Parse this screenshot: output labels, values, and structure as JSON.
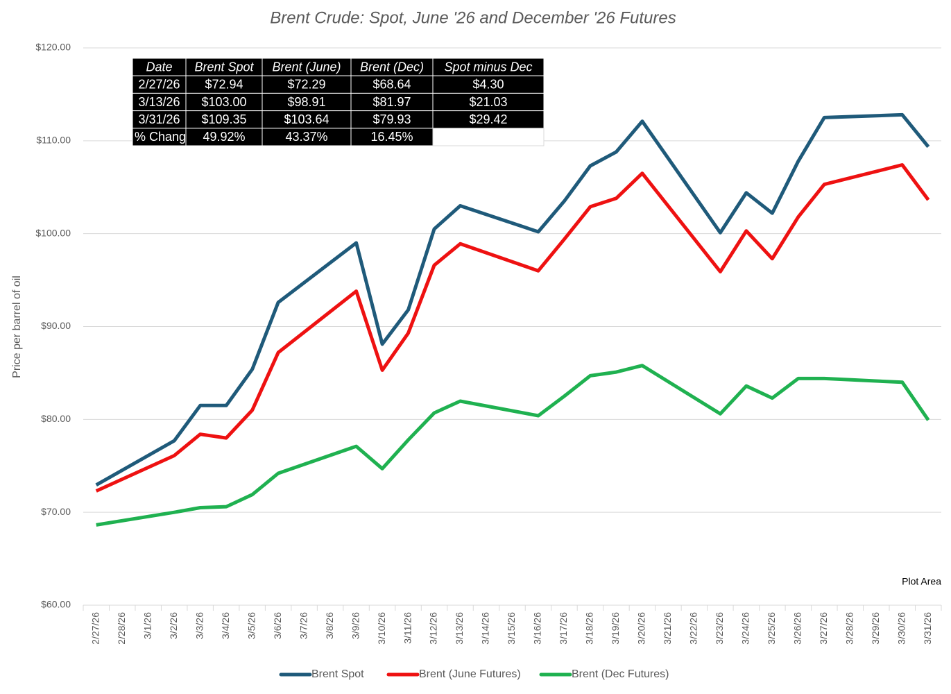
{
  "chart_data": {
    "type": "line",
    "title": "Brent Crude: Spot, June '26 and December '26 Futures",
    "y_label": "Price per barrel of oil",
    "annotation": "Plot Area",
    "span_gaps": true,
    "grid": true,
    "legend": "bottom",
    "categories": [
      "2/27/26",
      "2/28/26",
      "3/1/26",
      "3/2/26",
      "3/3/26",
      "3/4/26",
      "3/5/26",
      "3/6/26",
      "3/7/26",
      "3/8/26",
      "3/9/26",
      "3/10/26",
      "3/11/26",
      "3/12/26",
      "3/13/26",
      "3/14/26",
      "3/15/26",
      "3/16/26",
      "3/17/26",
      "3/18/26",
      "3/19/26",
      "3/20/26",
      "3/21/26",
      "3/22/26",
      "3/23/26",
      "3/24/26",
      "3/25/26",
      "3/26/26",
      "3/27/26",
      "3/28/26",
      "3/29/26",
      "3/30/26",
      "3/31/26"
    ],
    "series": [
      {
        "name": "Brent Spot",
        "color": "#1f5a7a",
        "values": [
          72.94,
          null,
          null,
          77.7,
          81.5,
          81.5,
          85.4,
          92.6,
          null,
          null,
          99.0,
          88.1,
          91.8,
          100.5,
          103.0,
          null,
          null,
          100.2,
          103.5,
          107.3,
          108.8,
          112.1,
          null,
          null,
          100.1,
          104.4,
          102.2,
          107.8,
          112.5,
          null,
          null,
          112.8,
          109.35
        ]
      },
      {
        "name": "Brent (June Futures)",
        "color": "#ee1111",
        "values": [
          72.29,
          null,
          null,
          76.1,
          78.4,
          78.0,
          81.0,
          87.2,
          null,
          null,
          93.8,
          85.3,
          89.3,
          96.6,
          98.91,
          null,
          null,
          96.0,
          99.4,
          102.9,
          103.8,
          106.5,
          null,
          null,
          95.9,
          100.3,
          97.3,
          101.8,
          105.3,
          null,
          null,
          107.4,
          103.64
        ]
      },
      {
        "name": "Brent (Dec Futures)",
        "color": "#1fb150",
        "values": [
          68.64,
          null,
          null,
          70.0,
          70.5,
          70.6,
          71.9,
          74.2,
          null,
          null,
          77.1,
          74.7,
          77.8,
          80.7,
          81.97,
          null,
          null,
          80.4,
          82.5,
          84.7,
          85.1,
          85.8,
          null,
          null,
          80.6,
          83.6,
          82.3,
          84.4,
          84.4,
          null,
          null,
          84.0,
          79.93
        ]
      }
    ],
    "ylim": [
      60,
      120
    ],
    "yticks": [
      {
        "value": 60,
        "label": "$60.00"
      },
      {
        "value": 70,
        "label": "$70.00"
      },
      {
        "value": 80,
        "label": "$80.00"
      },
      {
        "value": 90,
        "label": "$90.00"
      },
      {
        "value": 100,
        "label": "$100.00"
      },
      {
        "value": 110,
        "label": "$110.00"
      },
      {
        "value": 120,
        "label": "$120.00"
      }
    ],
    "table": {
      "header": [
        "Date",
        "Brent Spot",
        "Brent (June)",
        "Brent (Dec)",
        "Spot minus Dec"
      ],
      "rows": [
        [
          "2/27/26",
          "$72.94",
          "$72.29",
          "$68.64",
          "$4.30"
        ],
        [
          "3/13/26",
          "$103.00",
          "$98.91",
          "$81.97",
          "$21.03"
        ],
        [
          "3/31/26",
          "$109.35",
          "$103.64",
          "$79.93",
          "$29.42"
        ],
        [
          "% Chang",
          "49.92%",
          "43.37%",
          "16.45%"
        ]
      ]
    }
  }
}
